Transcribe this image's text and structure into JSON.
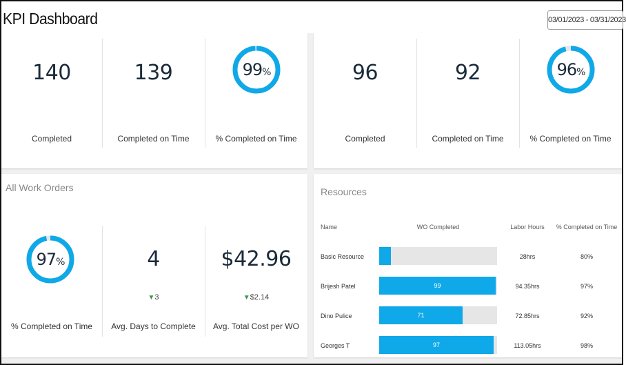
{
  "header": {
    "title": "KPI Dashboard",
    "date_range": "03/01/2023 - 03/31/2023"
  },
  "colors": {
    "accent": "#0fa8e8",
    "track": "#e6e6e6",
    "delta_down": "#3a9a4a"
  },
  "kpi_left": {
    "completed": {
      "value": "140",
      "label": "Completed"
    },
    "on_time": {
      "value": "139",
      "label": "Completed on Time"
    },
    "pct": {
      "value": "99",
      "unit": "%",
      "fraction": 0.99,
      "label": "% Completed on Time"
    }
  },
  "kpi_right": {
    "completed": {
      "value": "96",
      "label": "Completed"
    },
    "on_time": {
      "value": "92",
      "label": "Completed on Time"
    },
    "pct": {
      "value": "96",
      "unit": "%",
      "fraction": 0.96,
      "label": "% Completed on Time"
    }
  },
  "work_orders": {
    "title": "All Work Orders",
    "pct": {
      "value": "97",
      "unit": "%",
      "fraction": 0.97,
      "label": "% Completed on Time"
    },
    "days": {
      "value": "4",
      "delta": "3",
      "delta_icon": "triangle-down-icon",
      "label": "Avg. Days to Complete"
    },
    "cost": {
      "value": "$42.96",
      "delta": "$2.14",
      "delta_icon": "triangle-down-icon",
      "label": "Avg. Total Cost per WO"
    }
  },
  "resources": {
    "title": "Resources",
    "columns": {
      "name": "Name",
      "wo": "WO Completed",
      "hours": "Labor Hours",
      "pct": "% Completed on Time"
    },
    "max_wo": 100,
    "rows": [
      {
        "name": "Basic Resource",
        "wo": 10,
        "wo_label": "",
        "hours": "28hrs",
        "pct": "80%"
      },
      {
        "name": "Brijesh Patel",
        "wo": 99,
        "wo_label": "99",
        "hours": "94.35hrs",
        "pct": "97%"
      },
      {
        "name": "Dino Pulice",
        "wo": 71,
        "wo_label": "71",
        "hours": "72.85hrs",
        "pct": "92%"
      },
      {
        "name": "Georges T",
        "wo": 97,
        "wo_label": "97",
        "hours": "113.05hrs",
        "pct": "98%"
      }
    ]
  }
}
